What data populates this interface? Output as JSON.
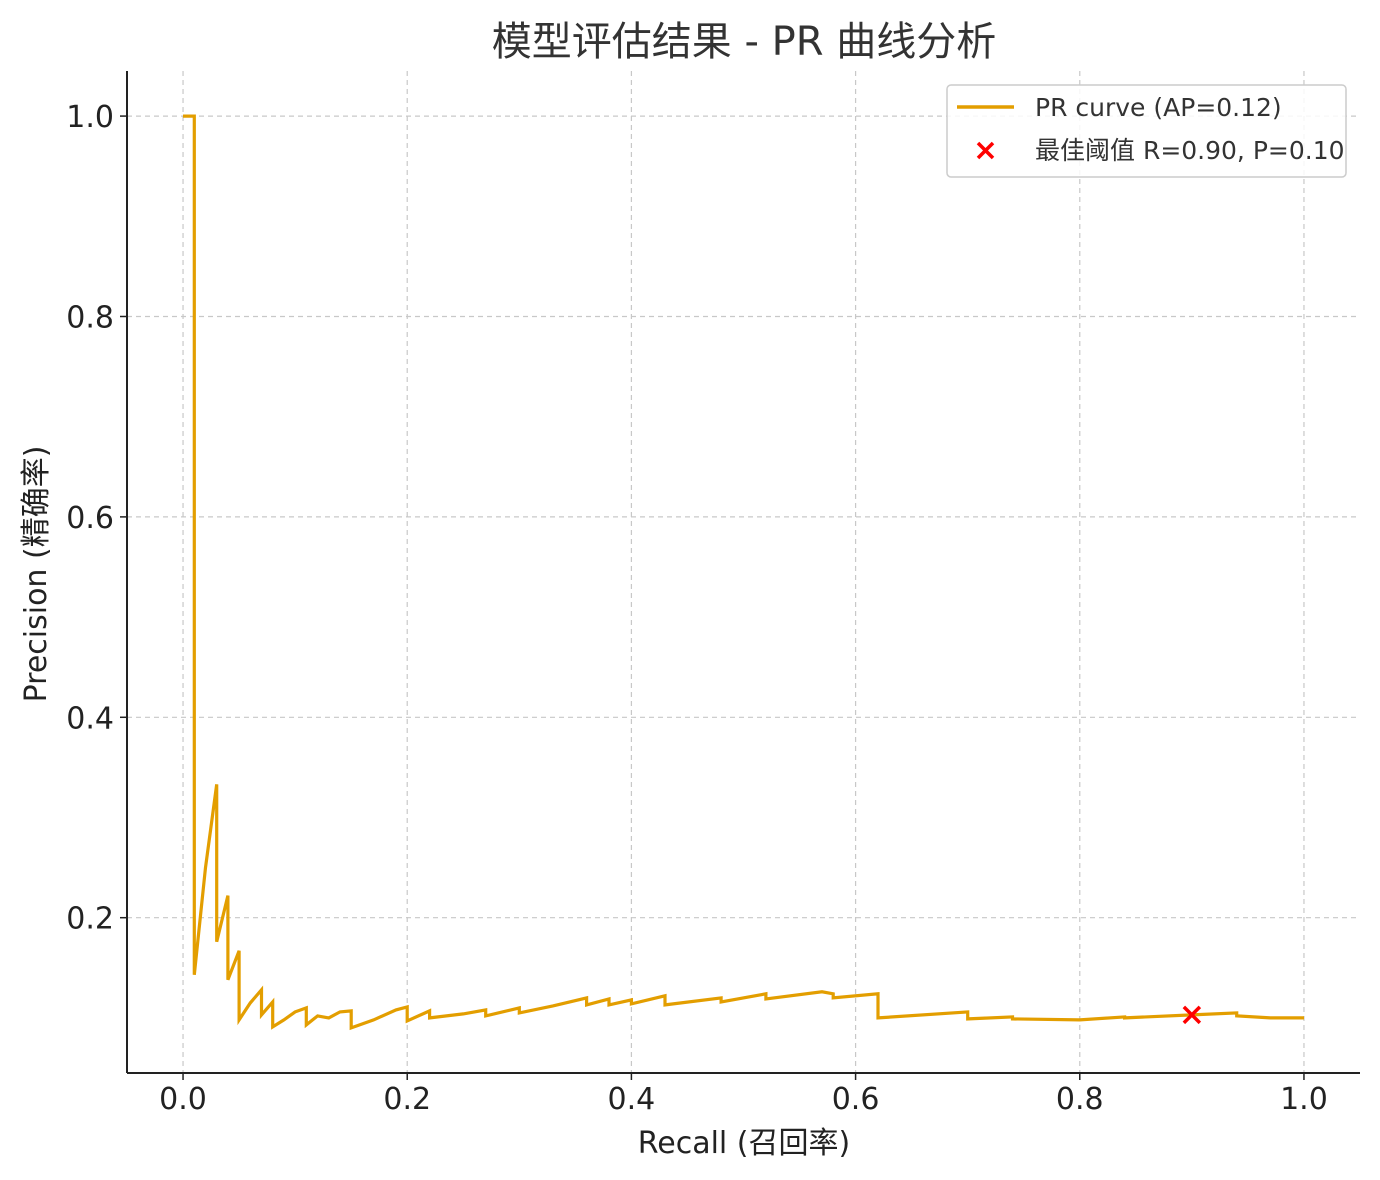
{
  "chart_data": {
    "type": "line",
    "title": "模型评估结果 - PR 曲线分析",
    "xlabel": "Recall (召回率)",
    "ylabel": "Precision (精确率)",
    "xlim": [
      -0.05,
      1.05
    ],
    "ylim": [
      0.045,
      1.045
    ],
    "xticks": [
      0.0,
      0.2,
      0.4,
      0.6,
      0.8,
      1.0
    ],
    "yticks": [
      0.2,
      0.4,
      0.6,
      0.8,
      1.0
    ],
    "xtick_labels": [
      "0.0",
      "0.2",
      "0.4",
      "0.6",
      "0.8",
      "1.0"
    ],
    "ytick_labels": [
      "0.2",
      "0.4",
      "0.6",
      "0.8",
      "1.0"
    ],
    "grid": true,
    "legend_position": "top-right",
    "series": [
      {
        "name": "PR curve (AP=0.12)",
        "color": "#E39E00",
        "x": [
          0.0,
          0.01,
          0.01,
          0.02,
          0.03,
          0.03,
          0.04,
          0.04,
          0.05,
          0.05,
          0.06,
          0.07,
          0.07,
          0.08,
          0.08,
          0.09,
          0.1,
          0.11,
          0.11,
          0.12,
          0.13,
          0.14,
          0.15,
          0.15,
          0.17,
          0.19,
          0.2,
          0.2,
          0.22,
          0.22,
          0.25,
          0.27,
          0.27,
          0.3,
          0.3,
          0.33,
          0.36,
          0.36,
          0.38,
          0.38,
          0.4,
          0.4,
          0.43,
          0.43,
          0.48,
          0.48,
          0.52,
          0.52,
          0.57,
          0.58,
          0.58,
          0.62,
          0.62,
          0.7,
          0.7,
          0.74,
          0.74,
          0.8,
          0.84,
          0.84,
          0.9,
          0.94,
          0.94,
          0.97,
          1.0
        ],
        "y": [
          1.0,
          1.0,
          0.143,
          0.25,
          0.333,
          0.176,
          0.222,
          0.138,
          0.167,
          0.098,
          0.115,
          0.128,
          0.103,
          0.116,
          0.091,
          0.098,
          0.106,
          0.11,
          0.093,
          0.102,
          0.1,
          0.106,
          0.107,
          0.09,
          0.098,
          0.108,
          0.111,
          0.097,
          0.107,
          0.1,
          0.104,
          0.108,
          0.102,
          0.11,
          0.105,
          0.112,
          0.12,
          0.113,
          0.119,
          0.113,
          0.118,
          0.114,
          0.122,
          0.113,
          0.12,
          0.116,
          0.124,
          0.119,
          0.126,
          0.124,
          0.12,
          0.124,
          0.1,
          0.106,
          0.099,
          0.101,
          0.099,
          0.098,
          0.101,
          0.1,
          0.103,
          0.105,
          0.102,
          0.1,
          0.1
        ]
      }
    ],
    "marker": {
      "label": "最佳阈值 R=0.90, P=0.10",
      "x": 0.9,
      "y": 0.103,
      "color": "#FF0000",
      "symbol": "x"
    }
  }
}
